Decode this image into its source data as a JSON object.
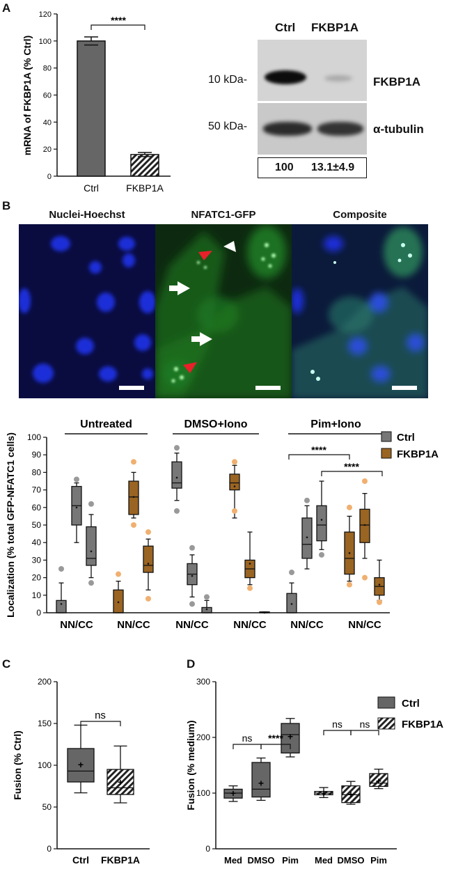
{
  "panelA": {
    "letter": "A",
    "chart_data": {
      "type": "bar",
      "categories": [
        "Ctrl",
        "FKBP1A"
      ],
      "values": [
        100,
        16
      ],
      "errors": [
        3,
        1.5
      ],
      "ylabel": "mRNA of FKBP1A (% Ctrl)",
      "ylim": [
        0,
        120
      ],
      "yticks": [
        "0",
        "20",
        "40",
        "60",
        "80",
        "100",
        "120"
      ],
      "significance": "****"
    },
    "blot": {
      "lanes": [
        "Ctrl",
        "FKBP1A"
      ],
      "markers": [
        "10 kDa-",
        "50 kDa-"
      ],
      "proteins": [
        "FKBP1A",
        "α-tubulin"
      ],
      "quant": [
        "100",
        "13.1±4.9"
      ]
    }
  },
  "panelB": {
    "letter": "B",
    "images": [
      "Nuclei-Hoechst",
      "NFATC1-GFP",
      "Composite"
    ],
    "chart_data": {
      "type": "box",
      "ylabel": "Localization (% total GFP-NFATC1 cells)",
      "ylim": [
        0,
        100
      ],
      "yticks": [
        "0",
        "10",
        "20",
        "30",
        "40",
        "50",
        "60",
        "70",
        "80",
        "90",
        "100"
      ],
      "groups": [
        "Untreated",
        "DMSO+Iono",
        "Pim+Iono"
      ],
      "xtick": "NN/CC",
      "legend": [
        "Ctrl",
        "FKBP1A"
      ],
      "significance": [
        "****",
        "****"
      ],
      "boxes": [
        {
          "g": 0,
          "s": "Ctrl",
          "min": 0,
          "q1": 0,
          "med": 0,
          "q3": 7,
          "max": 17,
          "mean": 5,
          "out": [
            25
          ]
        },
        {
          "g": 0,
          "s": "Ctrl",
          "min": 40,
          "q1": 50,
          "med": 61,
          "q3": 72,
          "max": 74,
          "mean": 60,
          "out": [
            76
          ]
        },
        {
          "g": 0,
          "s": "Ctrl",
          "min": 20,
          "q1": 27,
          "med": 31,
          "q3": 49,
          "max": 56,
          "mean": 35,
          "out": [
            17,
            62
          ]
        },
        {
          "g": 0,
          "s": "FKBP1A",
          "min": 0,
          "q1": 0,
          "med": 0,
          "q3": 13,
          "max": 18,
          "mean": 6,
          "out": [
            22
          ]
        },
        {
          "g": 0,
          "s": "FKBP1A",
          "min": 54,
          "q1": 56,
          "med": 66,
          "q3": 75,
          "max": 80,
          "mean": 66,
          "out": [
            50,
            86
          ]
        },
        {
          "g": 0,
          "s": "FKBP1A",
          "min": 13,
          "q1": 23,
          "med": 27,
          "q3": 38,
          "max": 42,
          "mean": 28,
          "out": [
            8,
            46
          ]
        },
        {
          "g": 1,
          "s": "Ctrl",
          "min": 64,
          "q1": 71,
          "med": 74,
          "q3": 86,
          "max": 91,
          "mean": 77,
          "out": [
            58,
            94
          ]
        },
        {
          "g": 1,
          "s": "Ctrl",
          "min": 9,
          "q1": 16,
          "med": 22,
          "q3": 28,
          "max": 33,
          "mean": 21,
          "out": [
            5,
            37
          ]
        },
        {
          "g": 1,
          "s": "Ctrl",
          "min": 0,
          "q1": 0,
          "med": 0,
          "q3": 3,
          "max": 7,
          "mean": 2,
          "out": [
            9
          ]
        },
        {
          "g": 1,
          "s": "FKBP1A",
          "min": 54,
          "q1": 70,
          "med": 74,
          "q3": 79,
          "max": 84,
          "mean": 72,
          "out": [
            58,
            86
          ]
        },
        {
          "g": 1,
          "s": "FKBP1A",
          "min": 16,
          "q1": 20,
          "med": 25,
          "q3": 30,
          "max": 46,
          "mean": 28,
          "out": [
            14
          ]
        },
        {
          "g": 1,
          "s": "FKBP1A",
          "min": 0,
          "q1": 0,
          "med": 0,
          "q3": 0.5,
          "max": 0.5,
          "mean": 0,
          "out": []
        },
        {
          "g": 2,
          "s": "Ctrl",
          "min": 0,
          "q1": 0,
          "med": 0,
          "q3": 11,
          "max": 17,
          "mean": 5,
          "out": [
            23
          ]
        },
        {
          "g": 2,
          "s": "Ctrl",
          "min": 25,
          "q1": 31,
          "med": 39,
          "q3": 54,
          "max": 61,
          "mean": 43,
          "out": [
            64
          ]
        },
        {
          "g": 2,
          "s": "Ctrl",
          "min": 36,
          "q1": 41,
          "med": 50,
          "q3": 61,
          "max": 75,
          "mean": 53,
          "out": [
            33
          ]
        },
        {
          "g": 2,
          "s": "FKBP1A",
          "min": 18,
          "q1": 22,
          "med": 31,
          "q3": 46,
          "max": 55,
          "mean": 34,
          "out": [
            16,
            60
          ]
        },
        {
          "g": 2,
          "s": "FKBP1A",
          "min": 31,
          "q1": 40,
          "med": 50,
          "q3": 59,
          "max": 68,
          "mean": 50,
          "out": [
            20,
            75
          ]
        },
        {
          "g": 2,
          "s": "FKBP1A",
          "min": 7,
          "q1": 10,
          "med": 15,
          "q3": 20,
          "max": 30,
          "mean": 16,
          "out": [
            6
          ]
        }
      ]
    }
  },
  "panelC": {
    "letter": "C",
    "chart_data": {
      "type": "box",
      "ylabel": "Fusion (% Ctrl)",
      "ylim": [
        0,
        200
      ],
      "yticks": [
        "0",
        "50",
        "100",
        "150",
        "200"
      ],
      "categories": [
        "Ctrl",
        "FKBP1A"
      ],
      "significance": "ns",
      "boxes": [
        {
          "min": 67,
          "q1": 80,
          "med": 93,
          "q3": 120,
          "max": 148,
          "mean": 101,
          "pattern": "solid"
        },
        {
          "min": 55,
          "q1": 65,
          "med": 73,
          "q3": 95,
          "max": 123,
          "mean": 80,
          "pattern": "hatch"
        }
      ]
    }
  },
  "panelD": {
    "letter": "D",
    "chart_data": {
      "type": "box",
      "ylabel": "Fusion (% medium)",
      "ylim": [
        0,
        300
      ],
      "yticks": [
        "0",
        "100",
        "200",
        "300"
      ],
      "categories": [
        "Med",
        "DMSO",
        "Pim",
        "Med",
        "DMSO",
        "Pim"
      ],
      "legend": [
        "Ctrl",
        "FKBP1A"
      ],
      "significance": [
        "ns",
        "****",
        "ns",
        "ns"
      ],
      "boxes": [
        {
          "min": 85,
          "q1": 91,
          "med": 100,
          "q3": 107,
          "max": 113,
          "mean": 100,
          "pattern": "solid"
        },
        {
          "min": 87,
          "q1": 93,
          "med": 107,
          "q3": 155,
          "max": 163,
          "mean": 118,
          "pattern": "solid"
        },
        {
          "min": 165,
          "q1": 172,
          "med": 205,
          "q3": 225,
          "max": 234,
          "mean": 202,
          "pattern": "solid"
        },
        {
          "min": 92,
          "q1": 97,
          "med": 100,
          "q3": 103,
          "max": 110,
          "mean": 100,
          "pattern": "hatch"
        },
        {
          "min": 80,
          "q1": 83,
          "med": 97,
          "q3": 113,
          "max": 121,
          "mean": 98,
          "pattern": "hatch"
        },
        {
          "min": 108,
          "q1": 112,
          "med": 118,
          "q3": 135,
          "max": 143,
          "mean": 122,
          "pattern": "hatch"
        }
      ]
    }
  }
}
